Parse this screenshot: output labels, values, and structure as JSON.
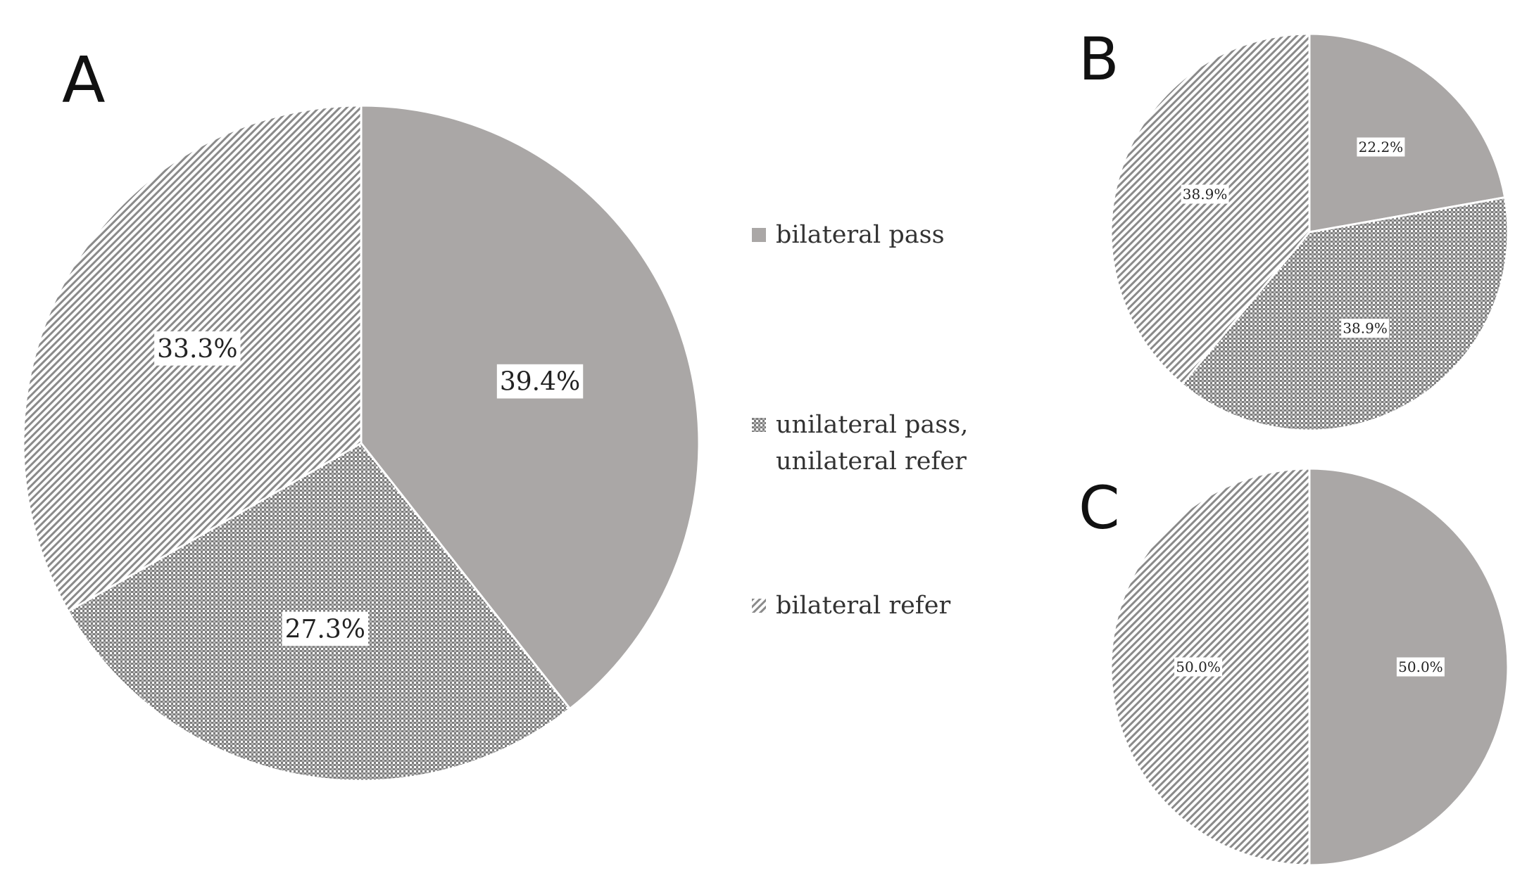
{
  "figure": {
    "panels": [
      "A",
      "B",
      "C"
    ]
  },
  "legend": [
    {
      "label": "bilateral pass",
      "pattern": "solid"
    },
    {
      "label": "unilateral pass,\nunilateral refer",
      "pattern": "dots"
    },
    {
      "label": "bilateral refer",
      "pattern": "diagonal"
    }
  ],
  "colors": {
    "solid": "#aaa7a6",
    "pattern_ink": "#7d7d7d",
    "background": "#ffffff"
  },
  "chart_data": [
    {
      "type": "pie",
      "panel": "A",
      "categories": [
        "bilateral pass",
        "unilateral pass, unilateral refer",
        "bilateral refer"
      ],
      "values": [
        39.4,
        27.3,
        33.3
      ],
      "labels": [
        "39.4%",
        "27.3%",
        "33.3%"
      ]
    },
    {
      "type": "pie",
      "panel": "B",
      "categories": [
        "bilateral pass",
        "unilateral pass, unilateral refer",
        "bilateral refer"
      ],
      "values": [
        22.2,
        38.9,
        38.9
      ],
      "labels": [
        "22.2%",
        "38.9%",
        "38.9%"
      ]
    },
    {
      "type": "pie",
      "panel": "C",
      "categories": [
        "bilateral pass",
        "bilateral refer"
      ],
      "values": [
        50.0,
        50.0
      ],
      "labels": [
        "50.0%",
        "50.0%"
      ]
    }
  ]
}
